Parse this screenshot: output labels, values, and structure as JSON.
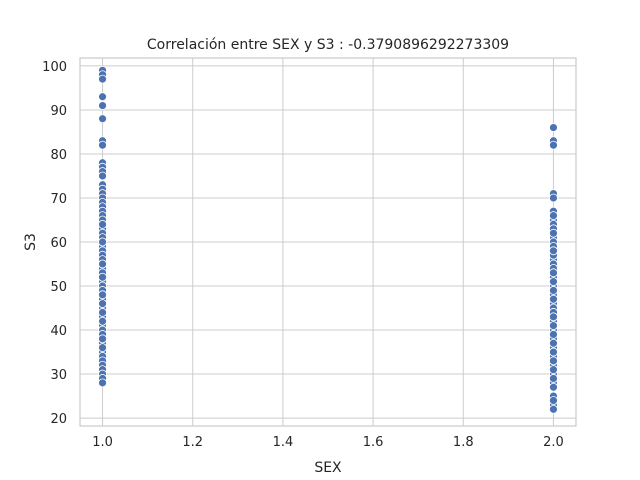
{
  "chart_data": {
    "type": "scatter",
    "title": "Correlación entre SEX y S3 : -0.3790896292273309",
    "xlabel": "SEX",
    "ylabel": "S3",
    "xlim": [
      0.95,
      2.05
    ],
    "ylim": [
      18.2,
      101.8
    ],
    "xticks": [
      "1.0",
      "1.2",
      "1.4",
      "1.6",
      "1.8",
      "2.0"
    ],
    "yticks": [
      "20",
      "30",
      "40",
      "50",
      "60",
      "70",
      "80",
      "90",
      "100"
    ],
    "grid": true,
    "point_color": "#4c72b0",
    "series": [
      {
        "x": [
          1,
          1,
          1,
          1,
          1,
          1,
          1,
          1,
          1,
          1,
          1,
          1,
          1,
          1,
          1,
          1,
          1,
          1,
          1,
          1,
          1,
          1,
          1,
          1,
          1,
          1,
          1,
          1,
          1,
          1,
          1,
          1,
          1,
          1,
          1,
          1,
          1,
          1,
          1,
          1,
          1,
          1,
          1,
          1,
          1,
          1,
          1,
          1,
          1,
          1,
          1,
          1,
          1,
          1,
          1,
          1,
          1,
          1,
          1,
          1,
          1,
          1,
          1,
          1,
          1,
          1,
          1,
          1,
          2,
          2,
          2,
          2,
          2,
          2,
          2,
          2,
          2,
          2,
          2,
          2,
          2,
          2,
          2,
          2,
          2,
          2,
          2,
          2,
          2,
          2,
          2,
          2,
          2,
          2,
          2,
          2,
          2,
          2,
          2,
          2,
          2,
          2,
          2,
          2,
          2,
          2,
          2,
          2,
          2,
          2,
          2,
          2,
          2,
          2,
          2,
          2,
          2,
          2,
          2,
          2,
          2,
          2,
          2,
          2,
          2,
          2,
          2,
          2,
          2,
          2,
          2,
          2,
          2,
          2
        ],
        "y": [
          99,
          98,
          97,
          93,
          91,
          88,
          83,
          82,
          78,
          77,
          76,
          75,
          73,
          72,
          71,
          70,
          69,
          68,
          67,
          66,
          65,
          64,
          63,
          62,
          61,
          60,
          59,
          58,
          57,
          56,
          55,
          54,
          53,
          52,
          51,
          50,
          49,
          48,
          47,
          46,
          45,
          44,
          43,
          42,
          41,
          40,
          39,
          38,
          37,
          36,
          35,
          34,
          33,
          32,
          31,
          30,
          29,
          28,
          46,
          52,
          60,
          38,
          42,
          48,
          55,
          64,
          36,
          44,
          86,
          83,
          82,
          71,
          70,
          67,
          66,
          65,
          64,
          63,
          61,
          60,
          59,
          58,
          57,
          56,
          55,
          54,
          53,
          52,
          51,
          50,
          49,
          48,
          47,
          46,
          45,
          44,
          43,
          42,
          41,
          40,
          39,
          38,
          37,
          36,
          35,
          34,
          33,
          32,
          31,
          30,
          29,
          28,
          25,
          23,
          22,
          62,
          57,
          51,
          49,
          44,
          41,
          37,
          33,
          29,
          66,
          58,
          53,
          47,
          43,
          39,
          35,
          31,
          27,
          24
        ]
      }
    ]
  }
}
